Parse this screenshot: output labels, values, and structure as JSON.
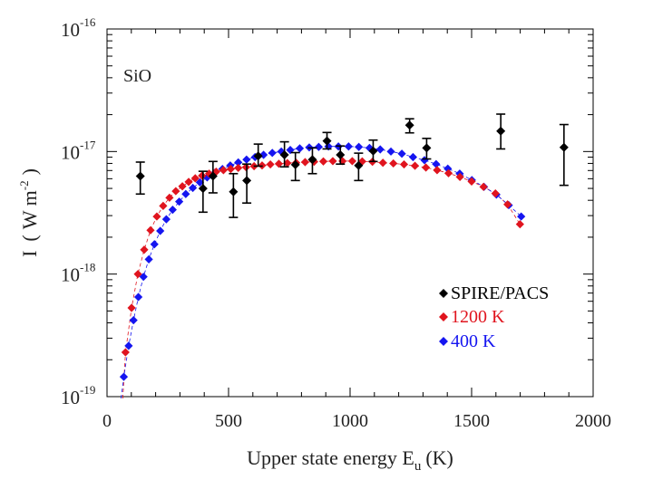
{
  "chart_data": {
    "type": "scatter",
    "annotation": "SiO",
    "xlabel_main": "Upper state energy E",
    "xlabel_sub": "u",
    "xlabel_unit": "(K)",
    "ylabel_main": "I",
    "ylabel_paren_open": "(",
    "ylabel_units": "W m",
    "ylabel_exp": "-2",
    "ylabel_paren_close": ")",
    "xlim": [
      0,
      2000
    ],
    "ylim_log10": [
      -19,
      -16
    ],
    "xticks": [
      0,
      500,
      1000,
      1500,
      2000
    ],
    "xtick_labels": [
      "0",
      "500",
      "1000",
      "1500",
      "2000"
    ],
    "yticks_log10": [
      -19,
      -18,
      -17,
      -16
    ],
    "ytick_base": "10",
    "ytick_exponents": [
      "-19",
      "-18",
      "-17",
      "-16"
    ],
    "legend_position": "bottom-right",
    "colors": {
      "observed": "#000000",
      "model_1200": "#e0141e",
      "model_400": "#1515f0"
    },
    "series": [
      {
        "name": "SPIRE/PACS",
        "marker": "diamond",
        "color": "#000000",
        "errorbars": true,
        "x": [
          137,
          395,
          436,
          520,
          575,
          622,
          730,
          775,
          845,
          905,
          960,
          1035,
          1095,
          1245,
          1315,
          1620,
          1880
        ],
        "y": [
          6.3e-18,
          5e-18,
          6.3e-18,
          4.7e-18,
          5.8e-18,
          9.2e-18,
          9.4e-18,
          7.8e-18,
          8.6e-18,
          1.22e-17,
          9.4e-18,
          7.7e-18,
          1.01e-17,
          1.64e-17,
          1.07e-17,
          1.47e-17,
          1.08e-17
        ],
        "err_low": [
          4.5e-18,
          3.2e-18,
          4.6e-18,
          2.9e-18,
          3.8e-18,
          7.6e-18,
          7.5e-18,
          5.8e-18,
          6.6e-18,
          1.05e-17,
          7.9e-18,
          5.8e-18,
          8.3e-18,
          1.42e-17,
          8.7e-18,
          1.05e-17,
          5.3e-18
        ],
        "err_high": [
          8.2e-18,
          6.9e-18,
          8.3e-18,
          6.6e-18,
          7.9e-18,
          1.15e-17,
          1.2e-17,
          9.8e-18,
          1.07e-17,
          1.43e-17,
          1.11e-17,
          9.7e-18,
          1.24e-17,
          1.85e-17,
          1.28e-17,
          2.02e-17,
          1.66e-17
        ]
      },
      {
        "name": "1200 K",
        "marker": "diamond",
        "color": "#e0141e",
        "curve": true,
        "x": [
          76,
          101,
          127,
          153,
          179,
          205,
          231,
          257,
          283,
          310,
          336,
          363,
          391,
          420,
          449,
          479,
          509,
          540,
          572,
          605,
          638,
          672,
          707,
          742,
          778,
          815,
          852,
          890,
          929,
          969,
          1009,
          1050,
          1092,
          1135,
          1178,
          1222,
          1267,
          1312,
          1358,
          1405,
          1452,
          1500,
          1549,
          1598,
          1648,
          1699
        ],
        "y": [
          2.3e-19,
          5.3e-19,
          1e-18,
          1.58e-18,
          2.28e-18,
          2.95e-18,
          3.6e-18,
          4.2e-18,
          4.75e-18,
          5.2e-18,
          5.65e-18,
          6.05e-18,
          6.35e-18,
          6.6e-18,
          6.85e-18,
          7.05e-18,
          7.2e-18,
          7.35e-18,
          7.45e-18,
          7.6e-18,
          7.7e-18,
          7.85e-18,
          7.95e-18,
          8.05e-18,
          8.1e-18,
          8.2e-18,
          8.25e-18,
          8.3e-18,
          8.35e-18,
          8.35e-18,
          8.35e-18,
          8.3e-18,
          8.25e-18,
          8.1e-18,
          8e-18,
          7.85e-18,
          7.65e-18,
          7.4e-18,
          7.05e-18,
          6.65e-18,
          6.2e-18,
          5.7e-18,
          5.15e-18,
          4.55e-18,
          3.7e-18,
          2.55e-18
        ]
      },
      {
        "name": "400 K",
        "marker": "diamond",
        "color": "#1515f0",
        "curve": true,
        "x": [
          69,
          89,
          109,
          129,
          150,
          172,
          195,
          219,
          244,
          270,
          297,
          324,
          353,
          382,
          412,
          443,
          475,
          507,
          540,
          574,
          609,
          644,
          680,
          717,
          754,
          793,
          832,
          871,
          911,
          952,
          994,
          1036,
          1080,
          1124,
          1168,
          1213,
          1259,
          1306,
          1354,
          1402,
          1451,
          1501,
          1551,
          1602,
          1653,
          1704
        ],
        "y": [
          1.45e-19,
          2.6e-19,
          4.2e-19,
          6.5e-19,
          9.5e-19,
          1.32e-18,
          1.75e-18,
          2.25e-18,
          2.8e-18,
          3.35e-18,
          3.9e-18,
          4.5e-18,
          5.05e-18,
          5.6e-18,
          6.15e-18,
          6.7e-18,
          7.2e-18,
          7.7e-18,
          8.15e-18,
          8.6e-18,
          9e-18,
          9.4e-18,
          9.75e-18,
          1e-17,
          1.03e-17,
          1.06e-17,
          1.08e-17,
          1.09e-17,
          1.1e-17,
          1.1e-17,
          1.1e-17,
          1.09e-17,
          1.07e-17,
          1.04e-17,
          1e-17,
          9.6e-18,
          9e-18,
          8.5e-18,
          7.9e-18,
          7.25e-18,
          6.6e-18,
          5.85e-18,
          5.15e-18,
          4.45e-18,
          3.65e-18,
          2.95e-18
        ]
      }
    ]
  }
}
